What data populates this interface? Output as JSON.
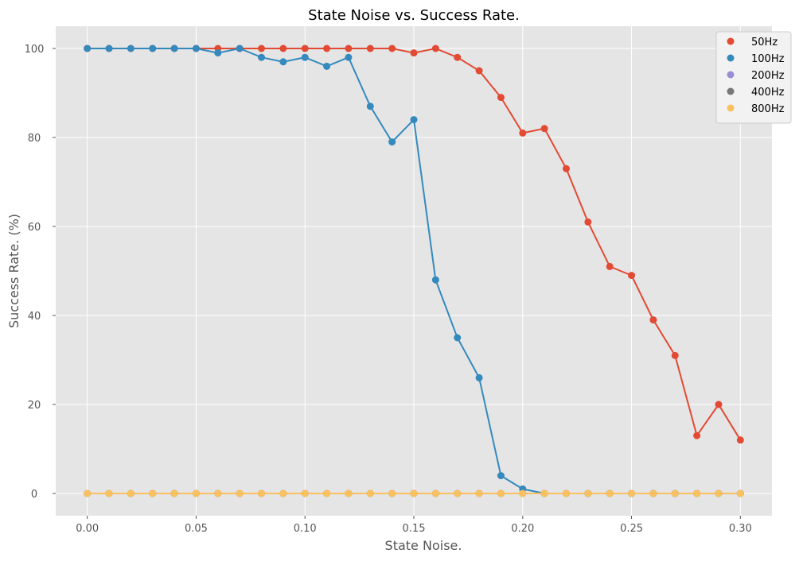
{
  "chart_data": {
    "type": "line",
    "title": "State Noise vs. Success Rate.",
    "xlabel": "State Noise.",
    "ylabel": "Success Rate. (%)",
    "xlim": [
      -0.0145,
      0.3145
    ],
    "ylim": [
      -5,
      105
    ],
    "x_ticks": [
      "0.00",
      "0.05",
      "0.10",
      "0.15",
      "0.20",
      "0.25",
      "0.30"
    ],
    "y_ticks": [
      "0",
      "20",
      "40",
      "60",
      "80",
      "100"
    ],
    "grid": true,
    "legend_position": "top-right",
    "x": [
      0.0,
      0.01,
      0.02,
      0.03,
      0.04,
      0.05,
      0.06,
      0.07,
      0.08,
      0.09,
      0.1,
      0.11,
      0.12,
      0.13,
      0.14,
      0.15,
      0.16,
      0.17,
      0.18,
      0.19,
      0.2,
      0.21,
      0.22,
      0.23,
      0.24,
      0.25,
      0.26,
      0.27,
      0.28,
      0.29,
      0.3
    ],
    "series": [
      {
        "name": "50Hz",
        "color": "#E24A33",
        "values": [
          100,
          100,
          100,
          100,
          100,
          100,
          100,
          100,
          100,
          100,
          100,
          100,
          100,
          100,
          100,
          99,
          100,
          98,
          95,
          89,
          81,
          82,
          73,
          61,
          51,
          49,
          39,
          31,
          13,
          20,
          12
        ]
      },
      {
        "name": "100Hz",
        "color": "#348ABD",
        "values": [
          100,
          100,
          100,
          100,
          100,
          100,
          99,
          100,
          98,
          97,
          98,
          96,
          98,
          87,
          79,
          84,
          48,
          35,
          26,
          4,
          1,
          0,
          0,
          0,
          0,
          0,
          0,
          0,
          0,
          0,
          0
        ]
      },
      {
        "name": "200Hz",
        "color": "#988ED5",
        "values": [
          0,
          0,
          0,
          0,
          0,
          0,
          0,
          0,
          0,
          0,
          0,
          0,
          0,
          0,
          0,
          0,
          0,
          0,
          0,
          0,
          0,
          0,
          0,
          0,
          0,
          0,
          0,
          0,
          0,
          0,
          0
        ]
      },
      {
        "name": "400Hz",
        "color": "#777777",
        "values": [
          0,
          0,
          0,
          0,
          0,
          0,
          0,
          0,
          0,
          0,
          0,
          0,
          0,
          0,
          0,
          0,
          0,
          0,
          0,
          0,
          0,
          0,
          0,
          0,
          0,
          0,
          0,
          0,
          0,
          0,
          0
        ]
      },
      {
        "name": "800Hz",
        "color": "#FBC15E",
        "values": [
          0,
          0,
          0,
          0,
          0,
          0,
          0,
          0,
          0,
          0,
          0,
          0,
          0,
          0,
          0,
          0,
          0,
          0,
          0,
          0,
          0,
          0,
          0,
          0,
          0,
          0,
          0,
          0,
          0,
          0,
          0
        ]
      }
    ],
    "colors": {
      "plot_background": "#E5E5E5",
      "grid": "#FFFFFF",
      "legend_background": "#F2F2F2"
    }
  }
}
